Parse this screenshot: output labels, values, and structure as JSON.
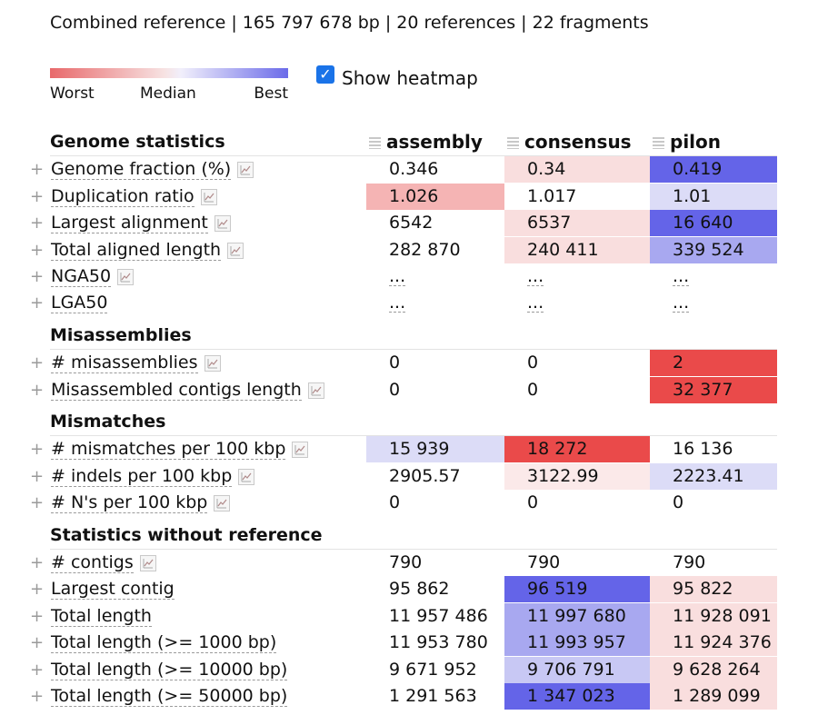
{
  "header": {
    "summary": "Combined reference | 165 797 678 bp | 20 references | 22 fragments"
  },
  "legend": {
    "worst": "Worst",
    "median": "Median",
    "best": "Best",
    "colors": {
      "worst": "#e8696b",
      "median": "#f5f0f5",
      "best": "#6b6be9"
    }
  },
  "heatmap_toggle": {
    "label": "Show heatmap",
    "checked": true
  },
  "columns": [
    "assembly",
    "consensus",
    "pilon"
  ],
  "sections": [
    {
      "title": "Genome statistics",
      "show_headers": true,
      "rows": [
        {
          "metric": "Genome fraction (%)",
          "plot": true,
          "values": [
            "0.346",
            "0.34",
            "0.419"
          ],
          "colors": [
            "",
            "#f9dede",
            "#6464e8"
          ]
        },
        {
          "metric": "Duplication ratio",
          "plot": true,
          "values": [
            "1.026",
            "1.017",
            "1.01"
          ],
          "colors": [
            "#f5b4b4",
            "",
            "#dcdcf7"
          ]
        },
        {
          "metric": "Largest alignment",
          "plot": true,
          "values": [
            "6542",
            "6537",
            "16 640"
          ],
          "colors": [
            "",
            "#f9dede",
            "#6464e8"
          ]
        },
        {
          "metric": "Total aligned length",
          "plot": true,
          "values": [
            "282 870",
            "240 411",
            "339 524"
          ],
          "colors": [
            "",
            "#f9dede",
            "#a8a8f0"
          ]
        },
        {
          "metric": "NGA50",
          "plot": true,
          "values": [
            "...",
            "...",
            "..."
          ],
          "colors": [
            "",
            "",
            ""
          ],
          "dotted": true
        },
        {
          "metric": "LGA50",
          "plot": false,
          "values": [
            "...",
            "...",
            "..."
          ],
          "colors": [
            "",
            "",
            ""
          ],
          "dotted": true
        }
      ]
    },
    {
      "title": "Misassemblies",
      "show_headers": false,
      "rows": [
        {
          "metric": "# misassemblies",
          "plot": true,
          "values": [
            "0",
            "0",
            "2"
          ],
          "colors": [
            "",
            "",
            "#ea4a4a"
          ]
        },
        {
          "metric": "Misassembled contigs length",
          "plot": true,
          "values": [
            "0",
            "0",
            "32 377"
          ],
          "colors": [
            "",
            "",
            "#ea4a4a"
          ]
        }
      ]
    },
    {
      "title": "Mismatches",
      "show_headers": false,
      "rows": [
        {
          "metric": "# mismatches per 100 kbp",
          "plot": true,
          "values": [
            "15 939",
            "18 272",
            "16 136"
          ],
          "colors": [
            "#dcdcf7",
            "#ea4a4a",
            ""
          ]
        },
        {
          "metric": "# indels per 100 kbp",
          "plot": true,
          "values": [
            "2905.57",
            "3122.99",
            "2223.41"
          ],
          "colors": [
            "",
            "#fbe9e9",
            "#dcdcf7"
          ]
        },
        {
          "metric": "# N's per 100 kbp",
          "plot": true,
          "values": [
            "0",
            "0",
            "0"
          ],
          "colors": [
            "",
            "",
            ""
          ]
        }
      ]
    },
    {
      "title": "Statistics without reference",
      "show_headers": false,
      "rows": [
        {
          "metric": "# contigs",
          "plot": true,
          "values": [
            "790",
            "790",
            "790"
          ],
          "colors": [
            "",
            "",
            ""
          ]
        },
        {
          "metric": "Largest contig",
          "plot": false,
          "values": [
            "95 862",
            "96 519",
            "95 822"
          ],
          "colors": [
            "",
            "#6464e8",
            "#f9dede"
          ]
        },
        {
          "metric": "Total length",
          "plot": false,
          "values": [
            "11 957 486",
            "11 997 680",
            "11 928 091"
          ],
          "colors": [
            "",
            "#a8a8f0",
            "#f9dede"
          ]
        },
        {
          "metric": "Total length (>= 1000 bp)",
          "plot": false,
          "values": [
            "11 953 780",
            "11 993 957",
            "11 924 376"
          ],
          "colors": [
            "",
            "#a8a8f0",
            "#f9dede"
          ]
        },
        {
          "metric": "Total length (>= 10000 bp)",
          "plot": false,
          "values": [
            "9 671 952",
            "9 706 791",
            "9 628 264"
          ],
          "colors": [
            "",
            "#c8c8f4",
            "#f9dede"
          ]
        },
        {
          "metric": "Total length (>= 50000 bp)",
          "plot": false,
          "values": [
            "1 291 563",
            "1 347 023",
            "1 289 099"
          ],
          "colors": [
            "",
            "#6464e8",
            "#f9dede"
          ]
        }
      ]
    }
  ]
}
